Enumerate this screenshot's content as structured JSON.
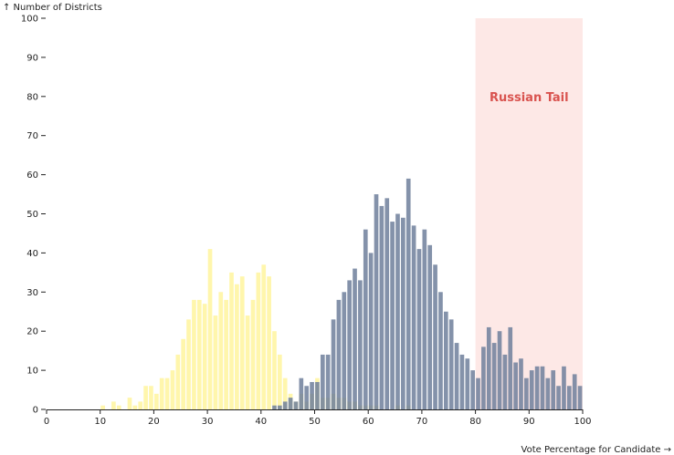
{
  "chart_data": {
    "type": "bar",
    "title": "",
    "xlabel": "Vote Percentage for Candidate →",
    "ylabel": "↑ Number of Districts",
    "xlim": [
      0,
      100
    ],
    "ylim": [
      0,
      100
    ],
    "bin_width": 1,
    "xticks": [
      "0",
      "10",
      "20",
      "30",
      "40",
      "50",
      "60",
      "70",
      "80",
      "90",
      "100"
    ],
    "yticks": [
      "0",
      "10",
      "20",
      "30",
      "40",
      "50",
      "60",
      "70",
      "80",
      "90",
      "100"
    ],
    "grid": false,
    "overlap": true,
    "highlight": {
      "label": "Russian Tail",
      "from": 80,
      "to": 100
    },
    "colors": {
      "series_a": "#fff59d",
      "series_b": "#6f7f9b",
      "highlight_fill": "#fde8e6",
      "highlight_text": "#d9534f"
    },
    "series": [
      {
        "key": "series_a",
        "x": [
          10,
          12,
          13,
          15,
          16,
          17,
          18,
          19,
          20,
          21,
          22,
          23,
          24,
          25,
          26,
          27,
          28,
          29,
          30,
          31,
          32,
          33,
          34,
          35,
          36,
          37,
          38,
          39,
          40,
          41,
          42,
          43,
          44,
          45,
          46,
          47,
          48,
          49,
          50,
          51,
          52,
          53,
          54,
          55,
          56,
          57,
          58,
          59,
          60,
          61,
          62,
          63,
          64,
          65,
          66,
          67
        ],
        "values": [
          1,
          2,
          1,
          3,
          1,
          2,
          6,
          6,
          4,
          8,
          8,
          10,
          14,
          18,
          23,
          28,
          28,
          27,
          41,
          24,
          30,
          28,
          35,
          32,
          34,
          24,
          28,
          35,
          37,
          34,
          20,
          14,
          8,
          4,
          2,
          4,
          2,
          4,
          8,
          3,
          3,
          4,
          3,
          3,
          2,
          2,
          1,
          1,
          1,
          1,
          0,
          0,
          0,
          1,
          0,
          1
        ]
      },
      {
        "key": "series_b",
        "x": [
          42,
          43,
          44,
          45,
          46,
          47,
          48,
          49,
          50,
          51,
          52,
          53,
          54,
          55,
          56,
          57,
          58,
          59,
          60,
          61,
          62,
          63,
          64,
          65,
          66,
          67,
          68,
          69,
          70,
          71,
          72,
          73,
          74,
          75,
          76,
          77,
          78,
          79,
          80,
          81,
          82,
          83,
          84,
          85,
          86,
          87,
          88,
          89,
          90,
          91,
          92,
          93,
          94,
          95,
          96,
          97,
          98,
          99
        ],
        "values": [
          1,
          1,
          2,
          3,
          2,
          8,
          6,
          7,
          7,
          14,
          14,
          23,
          28,
          30,
          33,
          36,
          33,
          46,
          40,
          55,
          52,
          54,
          48,
          50,
          49,
          59,
          47,
          41,
          46,
          42,
          37,
          30,
          25,
          23,
          17,
          14,
          13,
          10,
          8,
          16,
          21,
          17,
          20,
          14,
          21,
          12,
          13,
          8,
          10,
          11,
          11,
          8,
          10,
          6,
          11,
          6,
          9,
          6
        ]
      }
    ]
  }
}
